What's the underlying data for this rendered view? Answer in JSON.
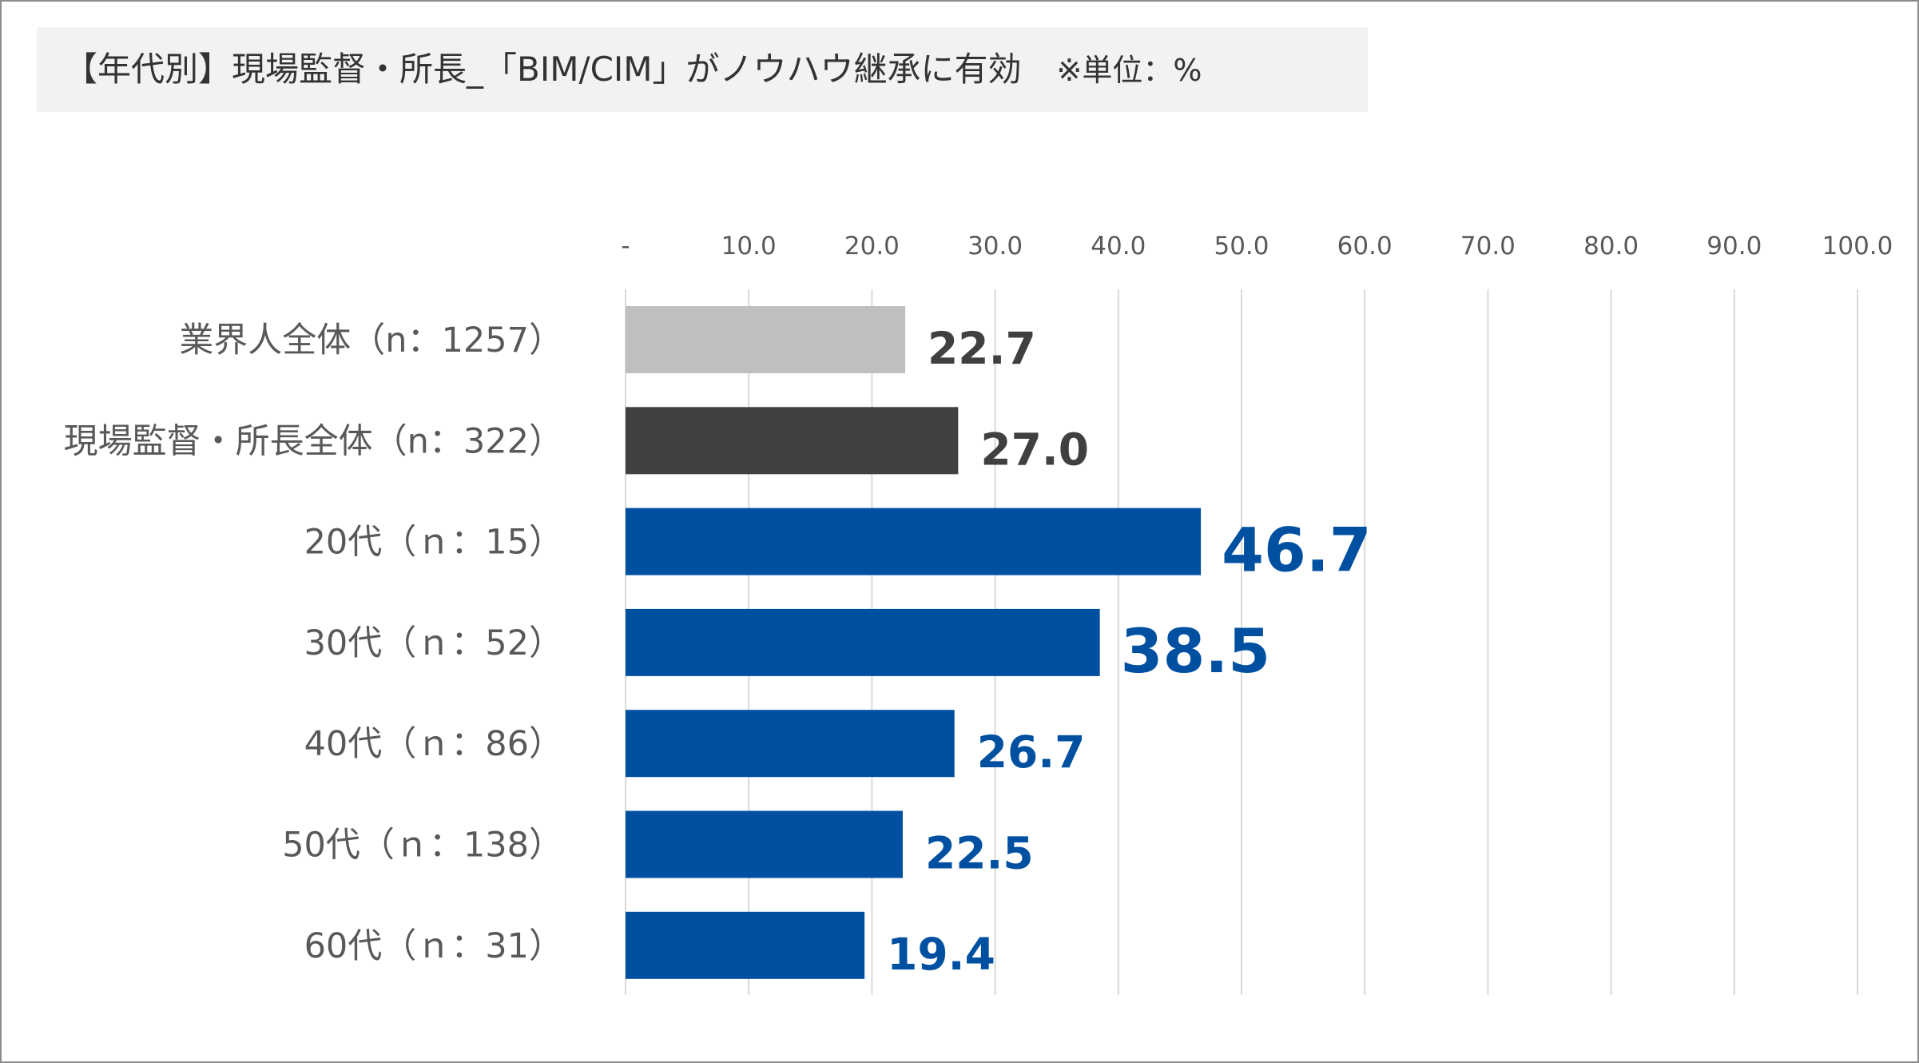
{
  "chart_data": {
    "type": "bar",
    "orientation": "horizontal",
    "title": "【年代別】現場監督・所長_「BIM/CIM」がノウハウ継承に有効",
    "unit_note": "※単位：%",
    "xlabel": "",
    "ylabel": "",
    "xlim": [
      0,
      100
    ],
    "x_ticks": [
      "-",
      "10.0",
      "20.0",
      "30.0",
      "40.0",
      "50.0",
      "60.0",
      "70.0",
      "80.0",
      "90.0",
      "100.0"
    ],
    "grid": true,
    "categories": [
      "業界人全体（n：1257）",
      "現場監督・所長全体（n：322）",
      "20代（ｎ：15）",
      "30代（ｎ：52）",
      "40代（ｎ：86）",
      "50代（ｎ：138）",
      "60代（ｎ：31）"
    ],
    "values": [
      22.7,
      27.0,
      46.7,
      38.5,
      26.7,
      22.5,
      19.4
    ],
    "value_labels": [
      "22.7",
      "27.0",
      "46.7",
      "38.5",
      "26.7",
      "22.5",
      "19.4"
    ],
    "bar_colors": [
      "#bfbfbf",
      "#404040",
      "#0050a2",
      "#0050a2",
      "#0050a2",
      "#0050a2",
      "#0050a2"
    ],
    "label_colors": [
      "#404040",
      "#404040",
      "#0050a2",
      "#0050a2",
      "#0050a2",
      "#0050a2",
      "#0050a2"
    ],
    "label_emphasis": [
      "normal",
      "normal",
      "large",
      "large",
      "normal",
      "normal",
      "normal"
    ]
  }
}
